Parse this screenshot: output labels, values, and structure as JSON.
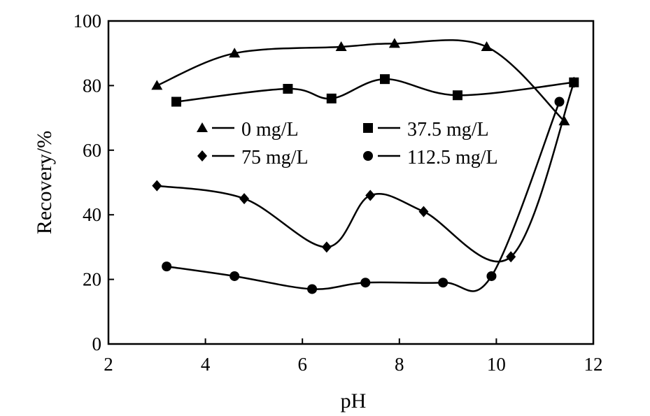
{
  "chart_data": {
    "type": "line",
    "xlabel": "pH",
    "ylabel": "Recovery/%",
    "xlim": [
      2,
      12
    ],
    "ylim": [
      0,
      100
    ],
    "xticks": [
      2,
      4,
      6,
      8,
      10,
      12
    ],
    "yticks": [
      0,
      20,
      40,
      60,
      80,
      100
    ],
    "grid": false,
    "legend_position": "center",
    "series": [
      {
        "name": "0 mg/L",
        "marker": "triangle",
        "x": [
          3.0,
          4.6,
          6.8,
          7.9,
          9.8,
          11.4
        ],
        "y": [
          80,
          90,
          92,
          93,
          92,
          69
        ]
      },
      {
        "name": "37.5 mg/L",
        "marker": "square",
        "x": [
          3.4,
          5.7,
          6.6,
          7.7,
          9.2,
          11.6
        ],
        "y": [
          75,
          79,
          76,
          82,
          77,
          81
        ]
      },
      {
        "name": "75 mg/L",
        "marker": "diamond",
        "x": [
          3.0,
          4.8,
          6.5,
          7.4,
          8.5,
          10.3,
          11.6
        ],
        "y": [
          49,
          45,
          30,
          46,
          41,
          27,
          81
        ]
      },
      {
        "name": "112.5 mg/L",
        "marker": "circle",
        "x": [
          3.2,
          4.6,
          6.2,
          7.3,
          8.9,
          9.9,
          11.3
        ],
        "y": [
          24,
          21,
          17,
          19,
          19,
          21,
          75
        ]
      }
    ]
  }
}
